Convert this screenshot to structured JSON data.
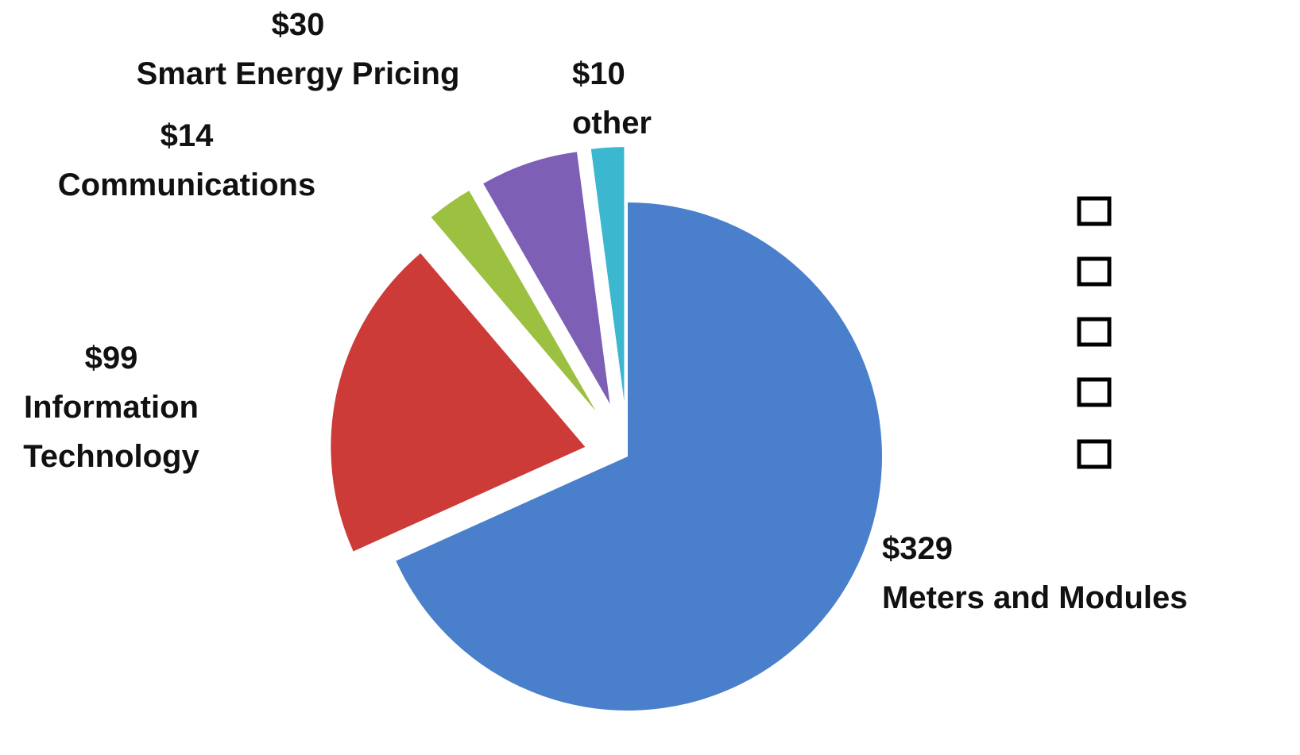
{
  "chart_data": {
    "type": "pie",
    "categories": [
      "Meters and Modules",
      "Information Technology",
      "Communications",
      "Smart Energy Pricing",
      "other"
    ],
    "values": [
      329,
      99,
      14,
      30,
      10
    ],
    "value_labels": [
      "$329",
      "$99",
      "$14",
      "$30",
      "$10"
    ],
    "colors": [
      "#4a7fcb",
      "#cc3b38",
      "#9cc040",
      "#7d5fb5",
      "#3cb7d0"
    ]
  }
}
